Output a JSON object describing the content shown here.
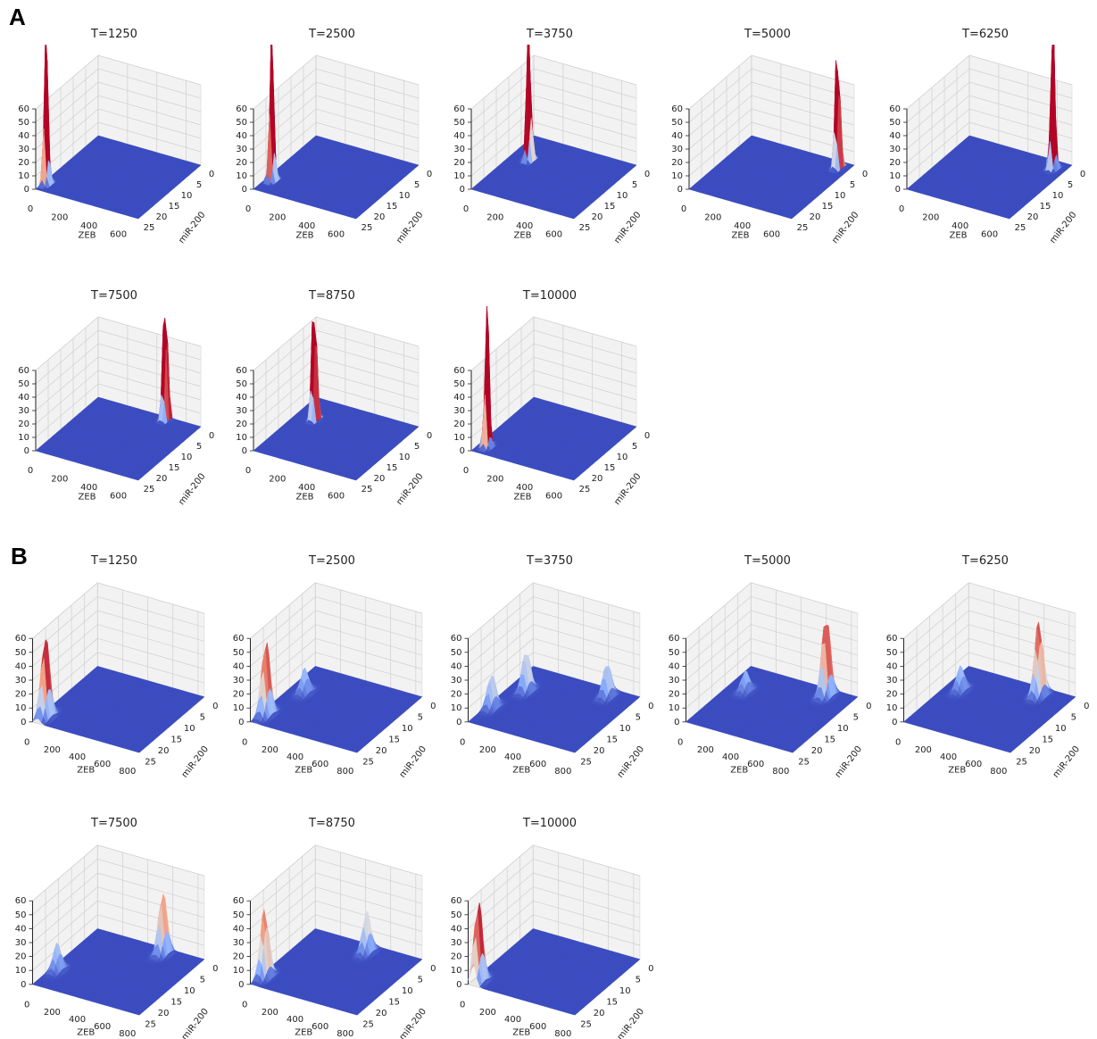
{
  "panel_labels": [
    "A",
    "B"
  ],
  "chart_data": [
    {
      "type": "surface3d",
      "title": "T=1250",
      "xlabel": "ZEB",
      "ylabel": "miR-200",
      "xlim": [
        0,
        700
      ],
      "xticks": [
        0,
        200,
        400,
        600
      ],
      "ylim": [
        0,
        25
      ],
      "yticks": [
        0,
        5,
        10,
        15,
        20,
        25
      ],
      "zlim": [
        0,
        60
      ],
      "zticks": [
        0,
        10,
        20,
        30,
        40,
        50,
        60
      ],
      "colormap": "coolwarm",
      "peaks": [
        {
          "x": 20,
          "y": 22,
          "z": 120,
          "x_width": 14,
          "y_width": 0.9
        }
      ]
    },
    {
      "type": "surface3d",
      "title": "T=2500",
      "xlabel": "ZEB",
      "ylabel": "miR-200",
      "xlim": [
        0,
        700
      ],
      "xticks": [
        0,
        200,
        400,
        600
      ],
      "ylim": [
        0,
        25
      ],
      "yticks": [
        0,
        5,
        10,
        15,
        20,
        25
      ],
      "zlim": [
        0,
        60
      ],
      "zticks": [
        0,
        10,
        20,
        30,
        40,
        50,
        60
      ],
      "colormap": "coolwarm",
      "peaks": [
        {
          "x": 40,
          "y": 20,
          "z": 120,
          "x_width": 14,
          "y_width": 0.9
        }
      ]
    },
    {
      "type": "surface3d",
      "title": "T=3750",
      "xlabel": "ZEB",
      "ylabel": "miR-200",
      "xlim": [
        0,
        700
      ],
      "xticks": [
        0,
        200,
        400,
        600
      ],
      "ylim": [
        0,
        25
      ],
      "yticks": [
        0,
        5,
        10,
        15,
        20,
        25
      ],
      "zlim": [
        0,
        60
      ],
      "zticks": [
        0,
        10,
        20,
        30,
        40,
        50,
        60
      ],
      "colormap": "coolwarm",
      "peaks": [
        {
          "x": 120,
          "y": 9,
          "z": 120,
          "x_width": 14,
          "y_width": 0.9
        }
      ]
    },
    {
      "type": "surface3d",
      "title": "T=5000",
      "xlabel": "ZEB",
      "ylabel": "miR-200",
      "xlim": [
        0,
        700
      ],
      "xticks": [
        0,
        200,
        400,
        600
      ],
      "ylim": [
        0,
        25
      ],
      "yticks": [
        0,
        5,
        10,
        15,
        20,
        25
      ],
      "zlim": [
        0,
        60
      ],
      "zticks": [
        0,
        10,
        20,
        30,
        40,
        50,
        60
      ],
      "colormap": "coolwarm",
      "peaks": [
        {
          "x": 630,
          "y": 2.5,
          "z": 120,
          "x_width": 14,
          "y_width": 0.9
        }
      ]
    },
    {
      "type": "surface3d",
      "title": "T=6250",
      "xlabel": "ZEB",
      "ylabel": "miR-200",
      "xlim": [
        0,
        700
      ],
      "xticks": [
        0,
        200,
        400,
        600
      ],
      "ylim": [
        0,
        25
      ],
      "yticks": [
        0,
        5,
        10,
        15,
        20,
        25
      ],
      "zlim": [
        0,
        60
      ],
      "zticks": [
        0,
        10,
        20,
        30,
        40,
        50,
        60
      ],
      "colormap": "coolwarm",
      "peaks": [
        {
          "x": 620,
          "y": 3,
          "z": 120,
          "x_width": 14,
          "y_width": 0.9
        }
      ]
    },
    {
      "type": "surface3d",
      "title": "T=7500",
      "xlabel": "ZEB",
      "ylabel": "miR-200",
      "xlim": [
        0,
        700
      ],
      "xticks": [
        0,
        200,
        400,
        600
      ],
      "ylim": [
        0,
        25
      ],
      "yticks": [
        0,
        5,
        10,
        15,
        20,
        25
      ],
      "zlim": [
        0,
        60
      ],
      "zticks": [
        0,
        10,
        20,
        30,
        40,
        50,
        60
      ],
      "colormap": "coolwarm",
      "peaks": [
        {
          "x": 475,
          "y": 1,
          "z": 120,
          "x_width": 14,
          "y_width": 0.9
        }
      ]
    },
    {
      "type": "surface3d",
      "title": "T=8750",
      "xlabel": "ZEB",
      "ylabel": "miR-200",
      "xlim": [
        0,
        700
      ],
      "xticks": [
        0,
        200,
        400,
        600
      ],
      "ylim": [
        0,
        25
      ],
      "yticks": [
        0,
        5,
        10,
        15,
        20,
        25
      ],
      "zlim": [
        0,
        60
      ],
      "zticks": [
        0,
        10,
        20,
        30,
        40,
        50,
        60
      ],
      "colormap": "coolwarm",
      "peaks": [
        {
          "x": 125,
          "y": 8,
          "z": 120,
          "x_width": 14,
          "y_width": 0.9
        }
      ]
    },
    {
      "type": "surface3d",
      "title": "T=10000",
      "xlabel": "ZEB",
      "ylabel": "miR-200",
      "xlim": [
        0,
        700
      ],
      "xticks": [
        0,
        200,
        400,
        600
      ],
      "ylim": [
        0,
        25
      ],
      "yticks": [
        0,
        5,
        10,
        15,
        20,
        25
      ],
      "zlim": [
        0,
        60
      ],
      "zticks": [
        0,
        10,
        20,
        30,
        40,
        50,
        60
      ],
      "colormap": "coolwarm",
      "peaks": [
        {
          "x": 55,
          "y": 22,
          "z": 120,
          "x_width": 14,
          "y_width": 0.9
        }
      ]
    },
    {
      "type": "surface3d",
      "title": "T=1250",
      "xlabel": "ZEB",
      "ylabel": "miR-200",
      "xlim": [
        0,
        850
      ],
      "xticks": [
        0,
        200,
        400,
        600,
        800
      ],
      "ylim": [
        0,
        25
      ],
      "yticks": [
        0,
        5,
        10,
        15,
        20,
        25
      ],
      "zlim": [
        0,
        60
      ],
      "zticks": [
        0,
        10,
        20,
        30,
        40,
        50,
        60
      ],
      "colormap": "coolwarm",
      "peaks": [
        {
          "x": 40,
          "y": 22,
          "z": 60,
          "x_width": 30,
          "y_width": 1.8
        }
      ]
    },
    {
      "type": "surface3d",
      "title": "T=2500",
      "xlabel": "ZEB",
      "ylabel": "miR-200",
      "xlim": [
        0,
        850
      ],
      "xticks": [
        0,
        200,
        400,
        600,
        800
      ],
      "ylim": [
        0,
        25
      ],
      "yticks": [
        0,
        5,
        10,
        15,
        20,
        25
      ],
      "zlim": [
        0,
        60
      ],
      "zticks": [
        0,
        10,
        20,
        30,
        40,
        50,
        60
      ],
      "colormap": "coolwarm",
      "peaks": [
        {
          "x": 40,
          "y": 21,
          "z": 55,
          "x_width": 30,
          "y_width": 1.8
        },
        {
          "x": 120,
          "y": 10,
          "z": 18,
          "x_width": 30,
          "y_width": 1.8
        }
      ]
    },
    {
      "type": "surface3d",
      "title": "T=3750",
      "xlabel": "ZEB",
      "ylabel": "miR-200",
      "xlim": [
        0,
        850
      ],
      "xticks": [
        0,
        200,
        400,
        600,
        800
      ],
      "ylim": [
        0,
        25
      ],
      "yticks": [
        0,
        5,
        10,
        15,
        20,
        25
      ],
      "zlim": [
        0,
        60
      ],
      "zticks": [
        0,
        10,
        20,
        30,
        40,
        50,
        60
      ],
      "colormap": "coolwarm",
      "peaks": [
        {
          "x": 40,
          "y": 18,
          "z": 25,
          "x_width": 30,
          "y_width": 1.8
        },
        {
          "x": 130,
          "y": 9,
          "z": 30,
          "x_width": 30,
          "y_width": 1.8
        },
        {
          "x": 650,
          "y": 3,
          "z": 25,
          "x_width": 30,
          "y_width": 1.8
        }
      ]
    },
    {
      "type": "surface3d",
      "title": "T=5000",
      "xlabel": "ZEB",
      "ylabel": "miR-200",
      "xlim": [
        0,
        850
      ],
      "xticks": [
        0,
        200,
        400,
        600,
        800
      ],
      "ylim": [
        0,
        25
      ],
      "yticks": [
        0,
        5,
        10,
        15,
        20,
        25
      ],
      "zlim": [
        0,
        60
      ],
      "zticks": [
        0,
        10,
        20,
        30,
        40,
        50,
        60
      ],
      "colormap": "coolwarm",
      "peaks": [
        {
          "x": 650,
          "y": 2.5,
          "z": 60,
          "x_width": 30,
          "y_width": 1.8
        },
        {
          "x": 140,
          "y": 9,
          "z": 15,
          "x_width": 30,
          "y_width": 1.8
        }
      ]
    },
    {
      "type": "surface3d",
      "title": "T=6250",
      "xlabel": "ZEB",
      "ylabel": "miR-200",
      "xlim": [
        0,
        850
      ],
      "xticks": [
        0,
        200,
        400,
        600,
        800
      ],
      "ylim": [
        0,
        25
      ],
      "yticks": [
        0,
        5,
        10,
        15,
        20,
        25
      ],
      "zlim": [
        0,
        60
      ],
      "zticks": [
        0,
        10,
        20,
        30,
        40,
        50,
        60
      ],
      "colormap": "coolwarm",
      "peaks": [
        {
          "x": 620,
          "y": 3,
          "z": 55,
          "x_width": 30,
          "y_width": 1.8
        },
        {
          "x": 120,
          "y": 9,
          "z": 18,
          "x_width": 30,
          "y_width": 1.8
        }
      ]
    },
    {
      "type": "surface3d",
      "title": "T=7500",
      "xlabel": "ZEB",
      "ylabel": "miR-200",
      "xlim": [
        0,
        850
      ],
      "xticks": [
        0,
        200,
        400,
        600,
        800
      ],
      "ylim": [
        0,
        25
      ],
      "yticks": [
        0,
        5,
        10,
        15,
        20,
        25
      ],
      "zlim": [
        0,
        60
      ],
      "zticks": [
        0,
        10,
        20,
        30,
        40,
        50,
        60
      ],
      "colormap": "coolwarm",
      "peaks": [
        {
          "x": 560,
          "y": 2,
          "z": 45,
          "x_width": 30,
          "y_width": 1.8
        },
        {
          "x": 50,
          "y": 18,
          "z": 20,
          "x_width": 30,
          "y_width": 1.8
        }
      ]
    },
    {
      "type": "surface3d",
      "title": "T=8750",
      "xlabel": "ZEB",
      "ylabel": "miR-200",
      "xlim": [
        0,
        850
      ],
      "xticks": [
        0,
        200,
        400,
        600,
        800
      ],
      "ylim": [
        0,
        25
      ],
      "yticks": [
        0,
        5,
        10,
        15,
        20,
        25
      ],
      "zlim": [
        0,
        60
      ],
      "zticks": [
        0,
        10,
        20,
        30,
        40,
        50,
        60
      ],
      "colormap": "coolwarm",
      "peaks": [
        {
          "x": 30,
          "y": 21,
          "z": 50,
          "x_width": 30,
          "y_width": 1.8
        },
        {
          "x": 470,
          "y": 3,
          "z": 30,
          "x_width": 30,
          "y_width": 1.8
        }
      ]
    },
    {
      "type": "surface3d",
      "title": "T=10000",
      "xlabel": "ZEB",
      "ylabel": "miR-200",
      "xlim": [
        0,
        850
      ],
      "xticks": [
        0,
        200,
        400,
        600,
        800
      ],
      "ylim": [
        0,
        25
      ],
      "yticks": [
        0,
        5,
        10,
        15,
        20,
        25
      ],
      "zlim": [
        0,
        60
      ],
      "zticks": [
        0,
        10,
        20,
        30,
        40,
        50,
        60
      ],
      "colormap": "coolwarm",
      "peaks": [
        {
          "x": 40,
          "y": 23,
          "z": 60,
          "x_width": 30,
          "y_width": 1.8
        }
      ]
    }
  ]
}
